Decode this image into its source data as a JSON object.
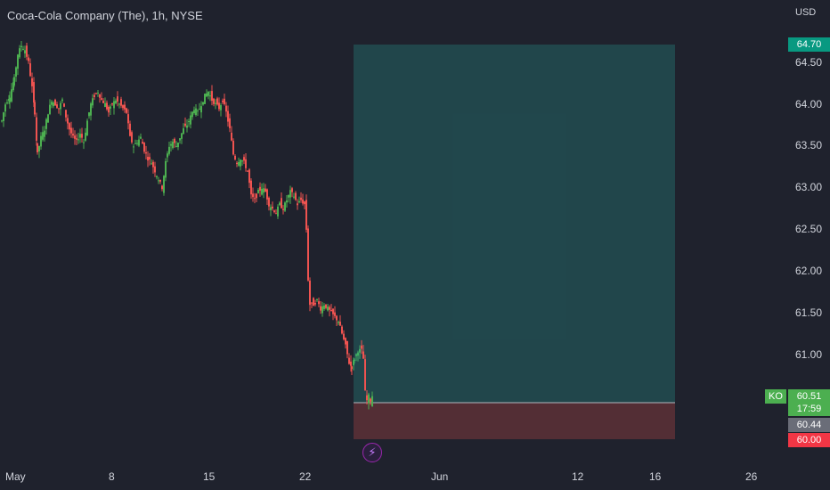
{
  "header": {
    "title": "Coca-Cola Company (The), 1h, NYSE",
    "currency": "USD"
  },
  "price_axis": {
    "ticks": [
      "64.50",
      "64.00",
      "63.50",
      "63.00",
      "62.50",
      "62.00",
      "61.50",
      "61.00"
    ]
  },
  "time_axis": {
    "ticks": [
      "May",
      "8",
      "15",
      "22",
      "Jun",
      "12",
      "16",
      "26"
    ]
  },
  "price_tags": {
    "target": "64.70",
    "last": "60.51",
    "entry": "60.44",
    "stop": "60.00",
    "ticker": "KO",
    "countdown": "17:59"
  },
  "colors": {
    "background": "#1f222d",
    "up": "#26a69a",
    "up_wick": "#4caf50",
    "down": "#ef5350",
    "profit_zone": "#26a69a",
    "loss_zone": "#ef5350",
    "target_tag": "#089981",
    "stop_tag": "#f23645",
    "entry_tag": "#6a6d78"
  },
  "alert_icon": "lightning-icon",
  "chart_data": {
    "type": "candlestick",
    "title": "Coca-Cola Company (The), 1h, NYSE",
    "ylim": [
      59.8,
      65.2
    ],
    "yticks": [
      61.0,
      61.5,
      62.0,
      62.5,
      63.0,
      63.5,
      64.0,
      64.5
    ],
    "xticks": [
      "May",
      "8",
      "15",
      "22",
      "Jun",
      "12",
      "16",
      "26"
    ],
    "close_path": [
      [
        0,
        63.8
      ],
      [
        4,
        64.0
      ],
      [
        9,
        64.1
      ],
      [
        14,
        64.3
      ],
      [
        18,
        64.6
      ],
      [
        22,
        64.7
      ],
      [
        26,
        64.65
      ],
      [
        30,
        64.5
      ],
      [
        34,
        64.2
      ],
      [
        37,
        63.9
      ],
      [
        40,
        63.4
      ],
      [
        44,
        63.6
      ],
      [
        48,
        63.7
      ],
      [
        52,
        63.9
      ],
      [
        56,
        64.05
      ],
      [
        60,
        64.0
      ],
      [
        64,
        63.95
      ],
      [
        68,
        64.05
      ],
      [
        72,
        63.85
      ],
      [
        76,
        63.7
      ],
      [
        80,
        63.6
      ],
      [
        84,
        63.55
      ],
      [
        88,
        63.65
      ],
      [
        92,
        63.55
      ],
      [
        96,
        63.8
      ],
      [
        100,
        64.0
      ],
      [
        104,
        64.1
      ],
      [
        108,
        64.15
      ],
      [
        112,
        64.05
      ],
      [
        116,
        64.0
      ],
      [
        120,
        63.9
      ],
      [
        124,
        64.0
      ],
      [
        128,
        64.05
      ],
      [
        132,
        64.0
      ],
      [
        136,
        63.95
      ],
      [
        140,
        63.9
      ],
      [
        144,
        63.6
      ],
      [
        148,
        63.5
      ],
      [
        152,
        63.55
      ],
      [
        156,
        63.6
      ],
      [
        160,
        63.45
      ],
      [
        164,
        63.35
      ],
      [
        168,
        63.3
      ],
      [
        172,
        63.2
      ],
      [
        176,
        63.1
      ],
      [
        180,
        63.0
      ],
      [
        184,
        63.3
      ],
      [
        188,
        63.5
      ],
      [
        192,
        63.55
      ],
      [
        196,
        63.5
      ],
      [
        200,
        63.6
      ],
      [
        204,
        63.7
      ],
      [
        208,
        63.75
      ],
      [
        212,
        63.85
      ],
      [
        216,
        63.95
      ],
      [
        220,
        63.9
      ],
      [
        224,
        64.0
      ],
      [
        228,
        64.1
      ],
      [
        232,
        64.15
      ],
      [
        236,
        64.05
      ],
      [
        240,
        64.0
      ],
      [
        244,
        63.95
      ],
      [
        248,
        64.05
      ],
      [
        252,
        63.9
      ],
      [
        256,
        63.7
      ],
      [
        260,
        63.4
      ],
      [
        264,
        63.3
      ],
      [
        268,
        63.35
      ],
      [
        272,
        63.3
      ],
      [
        276,
        63.2
      ],
      [
        280,
        62.9
      ],
      [
        284,
        62.85
      ],
      [
        288,
        62.95
      ],
      [
        292,
        63.0
      ],
      [
        296,
        62.95
      ],
      [
        300,
        62.8
      ],
      [
        304,
        62.75
      ],
      [
        308,
        62.7
      ],
      [
        312,
        62.8
      ],
      [
        316,
        62.75
      ],
      [
        320,
        62.85
      ],
      [
        324,
        62.95
      ],
      [
        328,
        62.9
      ],
      [
        332,
        62.8
      ],
      [
        336,
        62.85
      ],
      [
        340,
        62.8
      ],
      [
        342,
        62.5
      ],
      [
        344,
        61.9
      ],
      [
        346,
        61.6
      ],
      [
        350,
        61.6
      ],
      [
        354,
        61.65
      ],
      [
        358,
        61.55
      ],
      [
        362,
        61.6
      ],
      [
        366,
        61.55
      ],
      [
        370,
        61.5
      ],
      [
        374,
        61.45
      ],
      [
        378,
        61.4
      ],
      [
        382,
        61.25
      ],
      [
        386,
        61.1
      ],
      [
        390,
        60.9
      ],
      [
        393,
        60.85
      ],
      [
        396,
        60.95
      ],
      [
        400,
        61.05
      ],
      [
        404,
        61.05
      ],
      [
        406,
        60.95
      ],
      [
        408,
        60.55
      ],
      [
        410,
        60.45
      ],
      [
        412,
        60.5
      ],
      [
        414,
        60.45
      ],
      [
        416,
        60.51
      ]
    ],
    "position": {
      "target": 64.7,
      "entry": 60.44,
      "stop": 60.0,
      "last": 60.51,
      "profit_zone_color": "#26a69a",
      "loss_zone_color": "#ef5350"
    }
  }
}
